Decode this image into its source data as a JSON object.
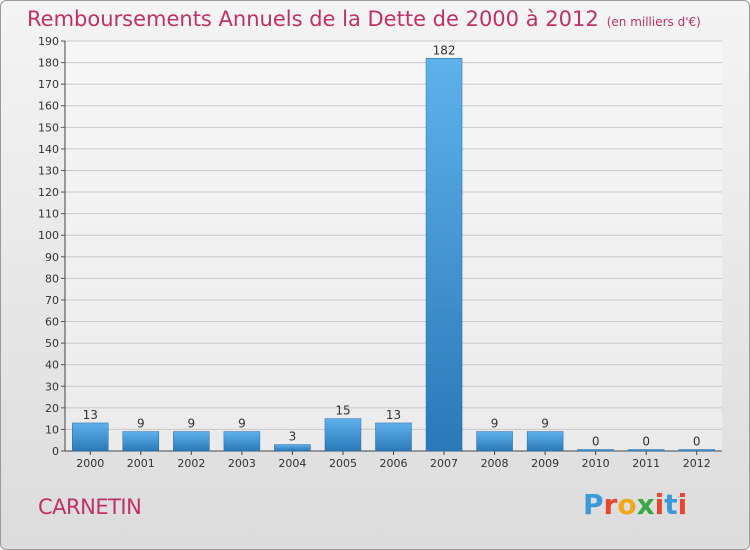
{
  "chart_data": {
    "type": "bar",
    "title": "Remboursements Annuels de la Dette de 2000 à 2012",
    "unit": "(en milliers d'€)",
    "categories": [
      "2000",
      "2001",
      "2002",
      "2003",
      "2004",
      "2005",
      "2006",
      "2007",
      "2008",
      "2009",
      "2010",
      "2011",
      "2012"
    ],
    "values": [
      13,
      9,
      9,
      9,
      3,
      15,
      13,
      182,
      9,
      9,
      0,
      0,
      0
    ],
    "ylim": [
      0,
      190
    ],
    "yticks": [
      0,
      10,
      20,
      30,
      40,
      50,
      60,
      70,
      80,
      90,
      100,
      110,
      120,
      130,
      140,
      150,
      160,
      170,
      180,
      190
    ],
    "grid": true,
    "bar_color": "#3a8fd6"
  },
  "commune": "CARNETIN",
  "logo": {
    "text": "Proxiti",
    "letter_colors": [
      "#3a9ad9",
      "#e8462e",
      "#f2a81d",
      "#3aa845",
      "#e8462e",
      "#3a9ad9",
      "#e8462e"
    ]
  }
}
